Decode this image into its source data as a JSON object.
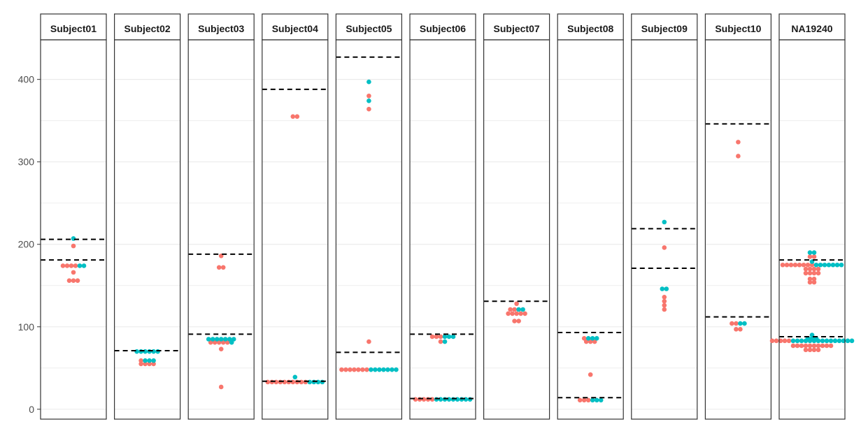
{
  "chart_data": {
    "type": "scatter",
    "subtype": "faceted beeswarm with dashed reference lines",
    "title": "",
    "xlabel": "",
    "ylabel": "",
    "ylim": [
      -12,
      448
    ],
    "yticks": [
      0,
      100,
      200,
      300,
      400
    ],
    "grid": true,
    "legend": "none",
    "colors": {
      "group_a": "#F8766D",
      "group_b": "#00BFC4"
    },
    "panels": [
      {
        "label": "Subject01",
        "dashed": [
          206,
          181
        ],
        "points": [
          [
            207,
            "b",
            1
          ],
          [
            198,
            "a",
            1
          ],
          [
            174,
            "a",
            4
          ],
          [
            174,
            "b",
            2
          ],
          [
            166,
            "a",
            1
          ],
          [
            156,
            "a",
            3
          ]
        ]
      },
      {
        "label": "Subject02",
        "dashed": [
          71
        ],
        "points": [
          [
            70,
            "b",
            6
          ],
          [
            59,
            "a",
            1
          ],
          [
            59,
            "b",
            3
          ],
          [
            55,
            "a",
            4
          ]
        ]
      },
      {
        "label": "Subject03",
        "dashed": [
          188,
          91
        ],
        "points": [
          [
            186,
            "a",
            1
          ],
          [
            172,
            "a",
            2
          ],
          [
            85,
            "b",
            7
          ],
          [
            81,
            "a",
            5
          ],
          [
            81,
            "b",
            1
          ],
          [
            73,
            "a",
            1
          ],
          [
            27,
            "a",
            1
          ]
        ]
      },
      {
        "label": "Subject04",
        "dashed": [
          388,
          34
        ],
        "points": [
          [
            355,
            "a",
            2
          ],
          [
            39,
            "b",
            1
          ],
          [
            33,
            "a",
            10
          ],
          [
            33,
            "b",
            4
          ]
        ]
      },
      {
        "label": "Subject05",
        "dashed": [
          427,
          69
        ],
        "points": [
          [
            397,
            "b",
            1
          ],
          [
            380,
            "a",
            1
          ],
          [
            374,
            "b",
            1
          ],
          [
            364,
            "a",
            1
          ],
          [
            82,
            "a",
            1
          ],
          [
            48,
            "a",
            7
          ],
          [
            48,
            "b",
            7
          ]
        ]
      },
      {
        "label": "Subject06",
        "dashed": [
          91,
          13
        ],
        "points": [
          [
            88,
            "a",
            3
          ],
          [
            88,
            "b",
            3
          ],
          [
            82,
            "a",
            1
          ],
          [
            82,
            "b",
            1
          ],
          [
            12,
            "a",
            5
          ],
          [
            12,
            "b",
            9
          ]
        ]
      },
      {
        "label": "Subject07",
        "dashed": [
          131
        ],
        "points": [
          [
            128,
            "a",
            1
          ],
          [
            121,
            "a",
            2
          ],
          [
            121,
            "b",
            2
          ],
          [
            116,
            "a",
            5
          ],
          [
            107,
            "a",
            2
          ]
        ]
      },
      {
        "label": "Subject08",
        "dashed": [
          93,
          14
        ],
        "points": [
          [
            86,
            "a",
            1
          ],
          [
            86,
            "b",
            3
          ],
          [
            82,
            "a",
            3
          ],
          [
            42,
            "a",
            1
          ],
          [
            11,
            "a",
            3
          ],
          [
            11,
            "b",
            3
          ]
        ]
      },
      {
        "label": "Subject09",
        "dashed": [
          219,
          171
        ],
        "points": [
          [
            227,
            "b",
            1
          ],
          [
            196,
            "a",
            1
          ],
          [
            146,
            "b",
            2
          ],
          [
            136,
            "a",
            1
          ],
          [
            131,
            "a",
            1
          ],
          [
            126,
            "a",
            1
          ],
          [
            121,
            "a",
            1
          ]
        ]
      },
      {
        "label": "Subject10",
        "dashed": [
          346,
          112
        ],
        "points": [
          [
            324,
            "a",
            1
          ],
          [
            307,
            "a",
            1
          ],
          [
            104,
            "a",
            2
          ],
          [
            104,
            "b",
            2
          ],
          [
            97,
            "a",
            2
          ]
        ]
      },
      {
        "label": "NA19240",
        "dashed": [
          181,
          88
        ],
        "points": [
          [
            190,
            "b",
            2
          ],
          [
            185,
            "a",
            2
          ],
          [
            179,
            "b",
            1
          ],
          [
            175,
            "a",
            8
          ],
          [
            175,
            "b",
            7
          ],
          [
            170,
            "a",
            4
          ],
          [
            165,
            "a",
            4
          ],
          [
            158,
            "a",
            2
          ],
          [
            154,
            "a",
            2
          ],
          [
            90,
            "b",
            1
          ],
          [
            86,
            "b",
            3
          ],
          [
            83,
            "a",
            5
          ],
          [
            83,
            "b",
            15
          ],
          [
            77,
            "a",
            10
          ],
          [
            72,
            "a",
            4
          ]
        ]
      }
    ]
  }
}
